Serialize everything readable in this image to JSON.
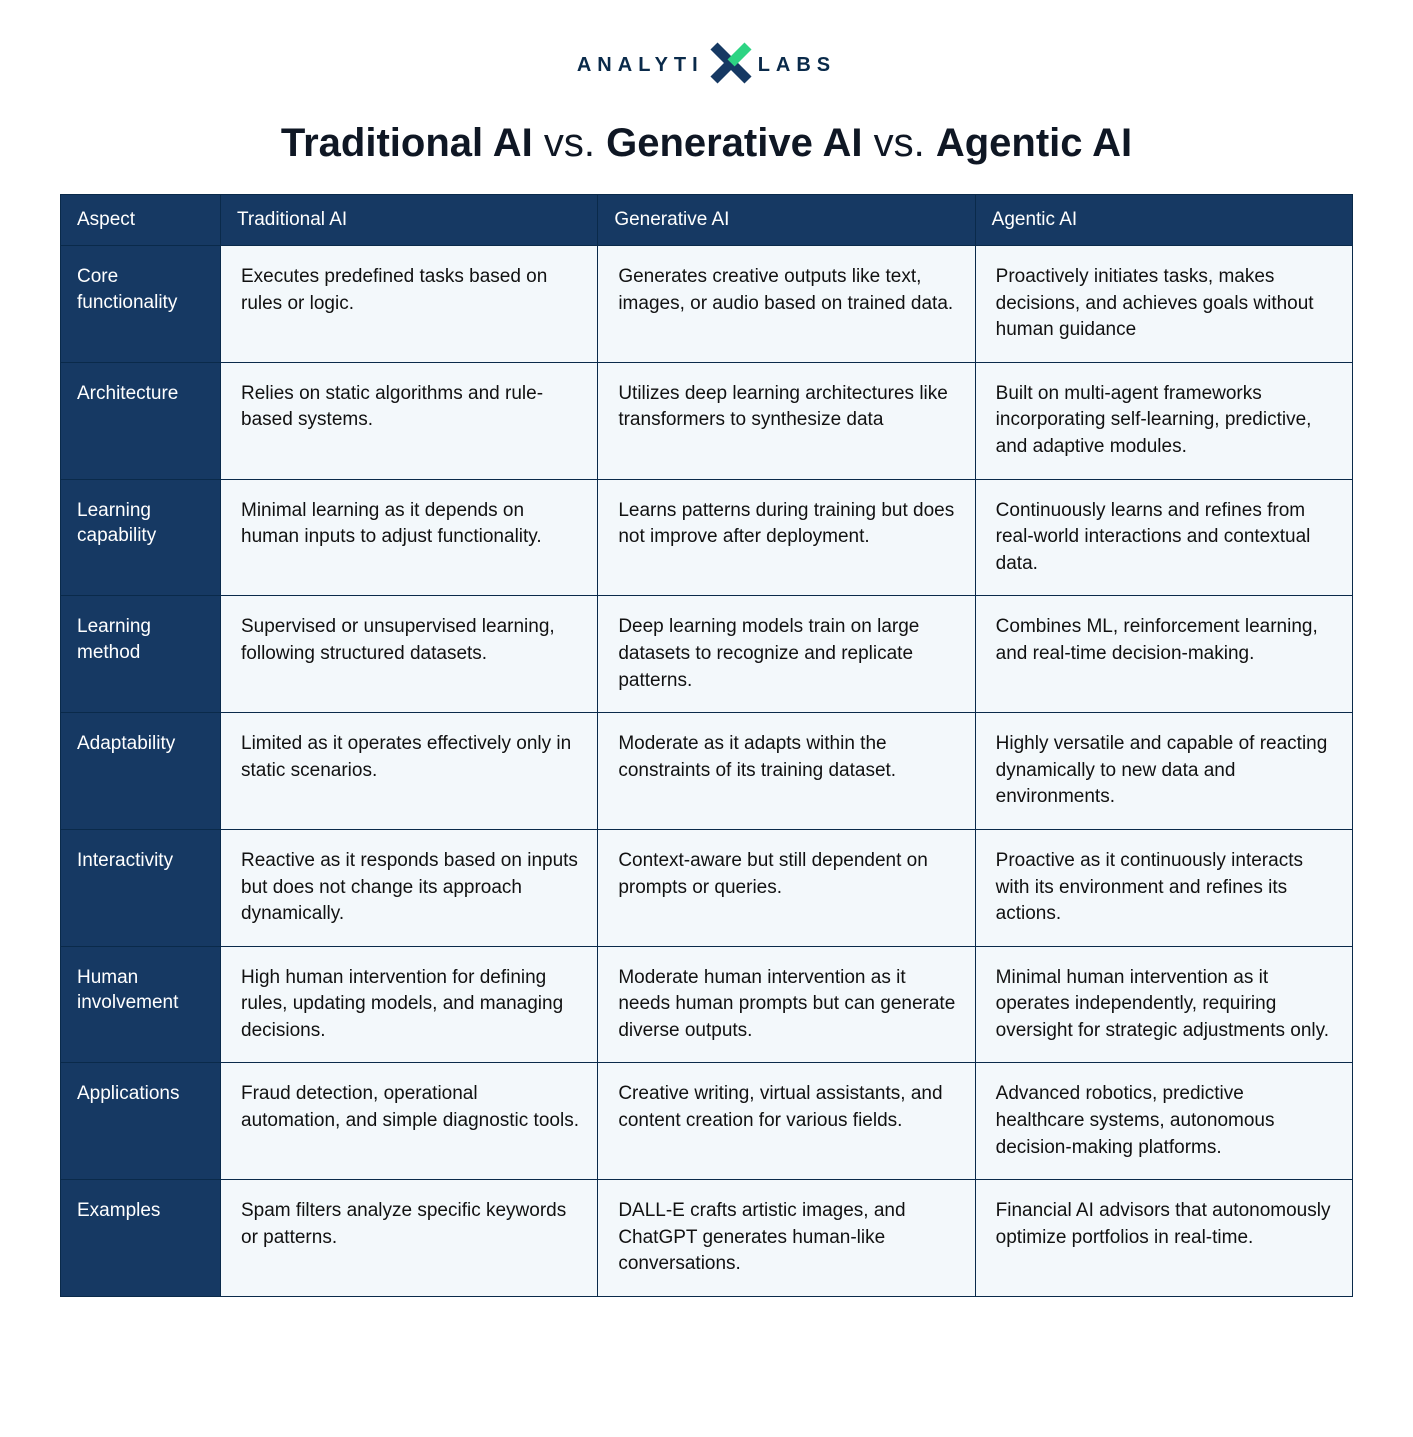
{
  "brand": {
    "left": "ANALYTI",
    "right": "LABS",
    "text_color": "#0a2a4a",
    "accent1": "#1aa3d4",
    "accent2": "#0d8a5e"
  },
  "title": {
    "segments": [
      {
        "text": "Traditional AI",
        "bold": true
      },
      {
        "text": " vs. ",
        "bold": false
      },
      {
        "text": "Generative AI",
        "bold": true
      },
      {
        "text": " vs. ",
        "bold": false
      },
      {
        "text": "Agentic AI",
        "bold": true
      }
    ]
  },
  "table": {
    "type": "table",
    "header_bg": "#163963",
    "header_fg": "#ffffff",
    "cell_bg": "#f3f8fb",
    "cell_fg": "#111111",
    "border_color": "#0a2a4a",
    "font_size_header": 19,
    "font_size_body": 19,
    "columns": [
      "Aspect",
      "Traditional AI",
      "Generative AI",
      "Agentic AI"
    ],
    "rows": [
      {
        "aspect": "Core functionality",
        "traditional": "Executes predefined tasks based on rules or logic.",
        "generative": "Generates creative outputs like text, images, or audio based on trained data.",
        "agentic": "Proactively initiates tasks, makes decisions, and achieves goals without human guidance"
      },
      {
        "aspect": "Architecture",
        "traditional": "Relies on static algorithms and rule-based systems.",
        "generative": "Utilizes deep learning architectures like transformers to synthesize data",
        "agentic": "Built on multi-agent frameworks incorporating self-learning, predictive, and adaptive modules."
      },
      {
        "aspect": "Learning capability",
        "traditional": "Minimal learning as it depends on human inputs to adjust functionality.",
        "generative": "Learns patterns during training but does not improve after deployment.",
        "agentic": "Continuously learns and refines from real-world interactions and contextual data."
      },
      {
        "aspect": "Learning method",
        "traditional": "Supervised or unsupervised learning, following structured datasets.",
        "generative": "Deep learning models train on large datasets to recognize and replicate patterns.",
        "agentic": "Combines ML, reinforcement learning, and real-time decision-making."
      },
      {
        "aspect": "Adaptability",
        "traditional": "Limited as it operates effectively only in static  scenarios.",
        "generative": "Moderate as it adapts within the constraints of its training dataset.",
        "agentic": "Highly versatile and capable of reacting dynamically to new  data and environments."
      },
      {
        "aspect": "Interactivity",
        "traditional": "Reactive as it responds based on inputs but does not change its approach dynamically.",
        "generative": "Context-aware but still dependent on prompts or queries.",
        "agentic": "Proactive as it continuously interacts with its environment and refines its actions."
      },
      {
        "aspect": "Human involvement",
        "traditional": "High human intervention for defining rules, updating models, and managing decisions.",
        "generative": "Moderate human intervention as it needs human prompts but can generate diverse outputs.",
        "agentic": "Minimal human intervention as it operates independently, requiring oversight for strategic adjustments only."
      },
      {
        "aspect": "Applications",
        "traditional": "Fraud detection, operational automation, and simple diagnostic tools.",
        "generative": "Creative writing, virtual assistants, and content creation for various fields.",
        "agentic": "Advanced robotics, predictive healthcare systems, autonomous decision-making platforms."
      },
      {
        "aspect": "Examples",
        "traditional": "Spam filters analyze specific keywords or patterns.",
        "generative": "DALL-E crafts artistic images, and ChatGPT generates human-like conversations.",
        "agentic": "Financial AI advisors that autonomously optimize portfolios in real-time."
      }
    ]
  }
}
